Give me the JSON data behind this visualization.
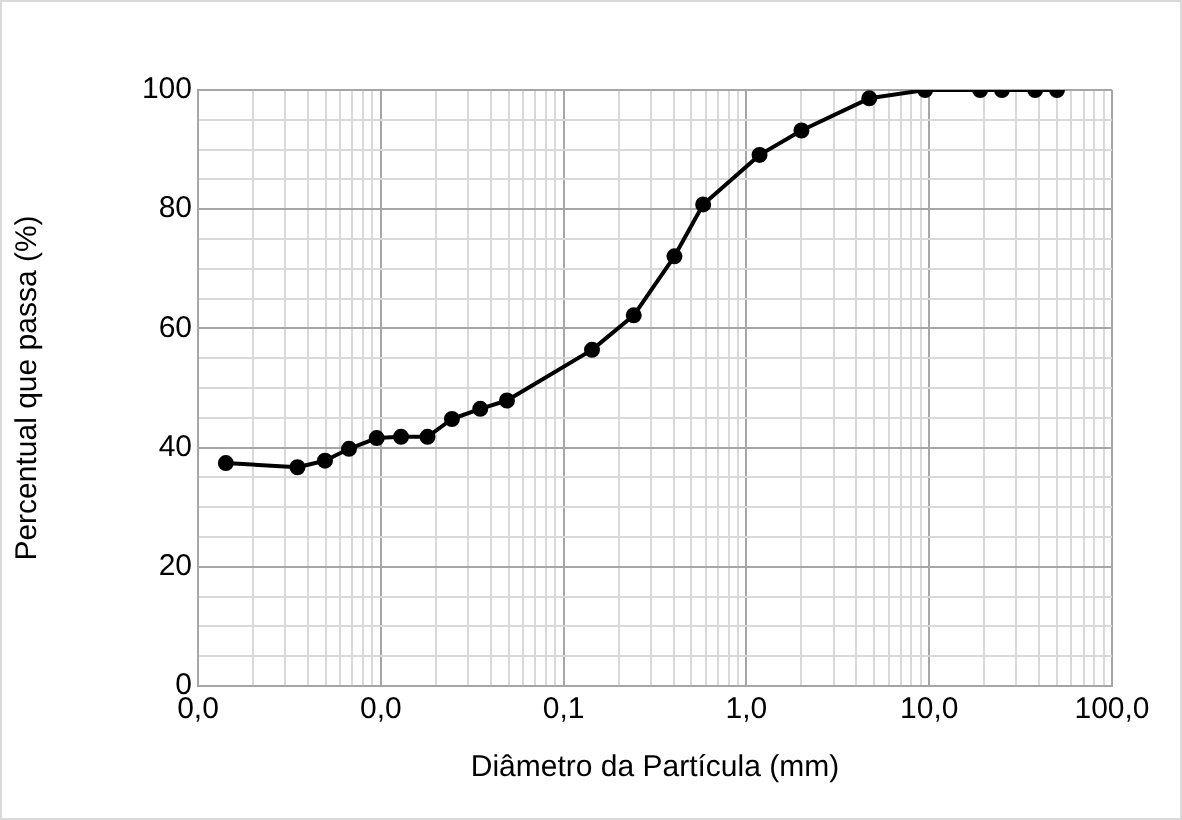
{
  "chart_data": {
    "type": "line",
    "xlabel": "Diâmetro da Partícula (mm)",
    "ylabel": "Percentual que passa (%)",
    "x": [
      0.00142,
      0.0035,
      0.00495,
      0.0067,
      0.0095,
      0.0129,
      0.018,
      0.0245,
      0.035,
      0.049,
      0.143,
      0.242,
      0.404,
      0.58,
      1.18,
      2.0,
      4.7,
      9.5,
      19,
      25,
      38,
      50
    ],
    "series": [
      {
        "color": "#000000",
        "values": [
          37.4,
          36.7,
          37.8,
          39.8,
          41.6,
          41.8,
          41.8,
          44.8,
          46.5,
          47.9,
          56.4,
          62.2,
          72.1,
          80.8,
          89.1,
          93.2,
          98.6,
          100,
          100,
          100,
          100,
          100
        ]
      }
    ],
    "log": "x",
    "xlim": [
      0.001,
      100
    ],
    "xticks": [
      {
        "value": 0.001,
        "label": "0,0"
      },
      {
        "value": 0.002,
        "label": null
      },
      {
        "value": 0.003,
        "label": null
      },
      {
        "value": 0.004,
        "label": null
      },
      {
        "value": 0.005,
        "label": null
      },
      {
        "value": 0.006,
        "label": null
      },
      {
        "value": 0.007,
        "label": null
      },
      {
        "value": 0.008,
        "label": null
      },
      {
        "value": 0.009,
        "label": null
      },
      {
        "value": 0.01,
        "label": "0,0"
      },
      {
        "value": 0.02,
        "label": null
      },
      {
        "value": 0.03,
        "label": null
      },
      {
        "value": 0.04,
        "label": null
      },
      {
        "value": 0.05,
        "label": null
      },
      {
        "value": 0.06,
        "label": null
      },
      {
        "value": 0.07,
        "label": null
      },
      {
        "value": 0.08,
        "label": null
      },
      {
        "value": 0.09,
        "label": null
      },
      {
        "value": 0.1,
        "label": "0,1"
      },
      {
        "value": 0.2,
        "label": null
      },
      {
        "value": 0.3,
        "label": null
      },
      {
        "value": 0.4,
        "label": null
      },
      {
        "value": 0.5,
        "label": null
      },
      {
        "value": 0.6,
        "label": null
      },
      {
        "value": 0.7,
        "label": null
      },
      {
        "value": 0.8,
        "label": null
      },
      {
        "value": 0.9,
        "label": null
      },
      {
        "value": 1,
        "label": "1,0"
      },
      {
        "value": 2,
        "label": null
      },
      {
        "value": 3,
        "label": null
      },
      {
        "value": 4,
        "label": null
      },
      {
        "value": 5,
        "label": null
      },
      {
        "value": 6,
        "label": null
      },
      {
        "value": 7,
        "label": null
      },
      {
        "value": 8,
        "label": null
      },
      {
        "value": 9,
        "label": null
      },
      {
        "value": 10,
        "label": "10,0"
      },
      {
        "value": 20,
        "label": null
      },
      {
        "value": 30,
        "label": null
      },
      {
        "value": 40,
        "label": null
      },
      {
        "value": 50,
        "label": null
      },
      {
        "value": 60,
        "label": null
      },
      {
        "value": 70,
        "label": null
      },
      {
        "value": 80,
        "label": null
      },
      {
        "value": 90,
        "label": null
      },
      {
        "value": 100,
        "label": "100,0"
      }
    ],
    "ylim": [
      0,
      100
    ],
    "yticks": [
      0,
      {
        "value": 5,
        "label": null
      },
      {
        "value": 10,
        "label": null
      },
      {
        "value": 15,
        "label": null
      },
      20,
      {
        "value": 25,
        "label": null
      },
      {
        "value": 30,
        "label": null
      },
      {
        "value": 35,
        "label": null
      },
      40,
      {
        "value": 45,
        "label": null
      },
      {
        "value": 50,
        "label": null
      },
      {
        "value": 55,
        "label": null
      },
      60,
      {
        "value": 65,
        "label": null
      },
      {
        "value": 70,
        "label": null
      },
      {
        "value": 75,
        "label": null
      },
      80,
      {
        "value": 85,
        "label": null
      },
      {
        "value": 90,
        "label": null
      },
      {
        "value": 95,
        "label": null
      },
      100
    ],
    "grid": true,
    "legend": false,
    "marker": "circle",
    "line_style": "solid"
  }
}
